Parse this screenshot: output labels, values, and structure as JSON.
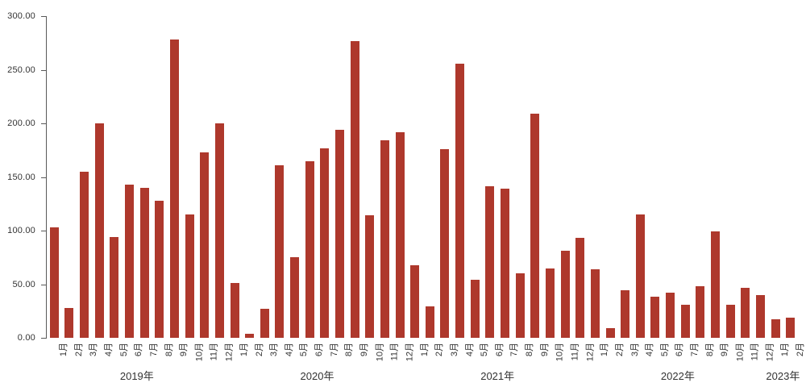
{
  "chart_data": {
    "type": "bar",
    "title": "",
    "xlabel": "",
    "ylabel": "",
    "ylim": [
      0,
      300
    ],
    "grid": false,
    "legend": "none",
    "ytick_labels": [
      "300.00",
      "250.00",
      "200.00",
      "150.00",
      "100.00",
      "50.00",
      "0.00"
    ],
    "categories": [
      "1月",
      "2月",
      "3月",
      "4月",
      "5月",
      "6月",
      "7月",
      "8月",
      "9月",
      "10月",
      "11月",
      "12月",
      "1月",
      "2月",
      "3月",
      "4月",
      "5月",
      "6月",
      "7月",
      "8月",
      "9月",
      "10月",
      "11月",
      "12月",
      "1月",
      "2月",
      "3月",
      "4月",
      "5月",
      "6月",
      "7月",
      "8月",
      "9月",
      "10月",
      "11月",
      "12月",
      "1月",
      "2月",
      "3月",
      "4月",
      "5月",
      "6月",
      "7月",
      "8月",
      "9月",
      "10月",
      "11月",
      "12月",
      "1月",
      "2月"
    ],
    "values": [
      103,
      28,
      155,
      200,
      94,
      143,
      140,
      128,
      278,
      115,
      173,
      200,
      51,
      4,
      27,
      161,
      75,
      165,
      177,
      194,
      277,
      114,
      184,
      192,
      68,
      29,
      176,
      256,
      54,
      141,
      139,
      60,
      209,
      65,
      81,
      93,
      64,
      9,
      44,
      115,
      38,
      42,
      31,
      48,
      99,
      31,
      47,
      40,
      17,
      19
    ],
    "year_groups": [
      {
        "label": "2019年",
        "start": 0,
        "count": 12
      },
      {
        "label": "2020年",
        "start": 12,
        "count": 12
      },
      {
        "label": "2021年",
        "start": 24,
        "count": 12
      },
      {
        "label": "2022年",
        "start": 36,
        "count": 12
      },
      {
        "label": "2023年",
        "start": 48,
        "count": 2
      }
    ],
    "colors": {
      "bar": "#AE382C",
      "axis": "#595959",
      "text": "#333333"
    }
  }
}
